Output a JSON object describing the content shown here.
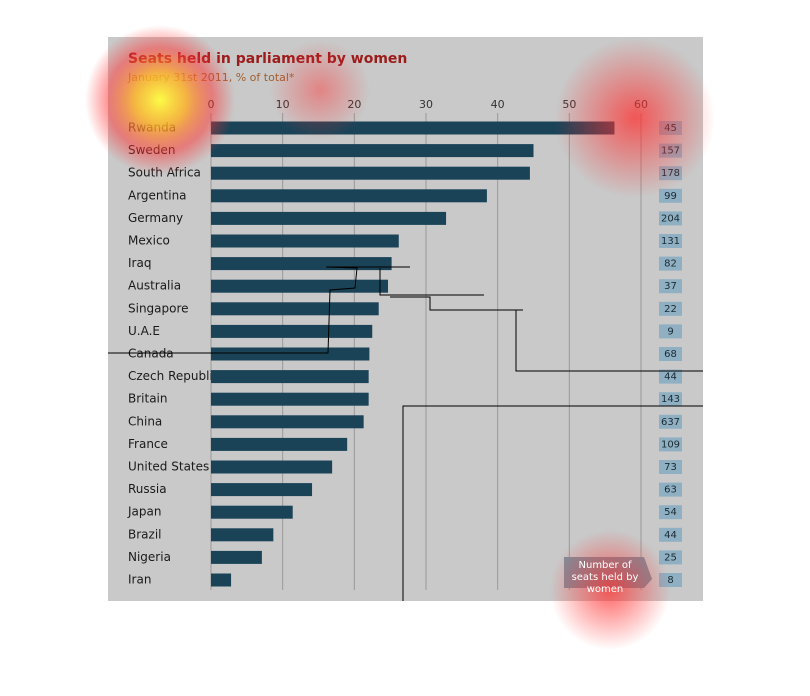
{
  "chart_data": {
    "type": "bar",
    "orientation": "horizontal",
    "title": "Seats held in parliament by women",
    "subtitle": "January 31st 2011, % of total*",
    "categories": [
      "Rwanda",
      "Sweden",
      "South Africa",
      "Argentina",
      "Germany",
      "Mexico",
      "Iraq",
      "Australia",
      "Singapore",
      "U.A.E",
      "Canada",
      "Czech Republic",
      "Britain",
      "China",
      "France",
      "United States",
      "Russia",
      "Japan",
      "Brazil",
      "Nigeria",
      "Iran"
    ],
    "values": [
      56.3,
      45.0,
      44.5,
      38.5,
      32.8,
      26.2,
      25.2,
      24.7,
      23.4,
      22.5,
      22.1,
      22.0,
      22.0,
      21.3,
      19.0,
      16.9,
      14.1,
      11.4,
      8.7,
      7.1,
      2.8
    ],
    "seats": [
      45,
      157,
      178,
      99,
      204,
      131,
      82,
      37,
      22,
      9,
      68,
      44,
      143,
      637,
      109,
      73,
      63,
      54,
      44,
      25,
      8
    ],
    "annotation": "Number of seats held by women",
    "color": "#1b4358",
    "xlim": [
      0,
      60
    ],
    "xticks": [
      0,
      10,
      20,
      30,
      40,
      50,
      60
    ],
    "grid": true
  }
}
